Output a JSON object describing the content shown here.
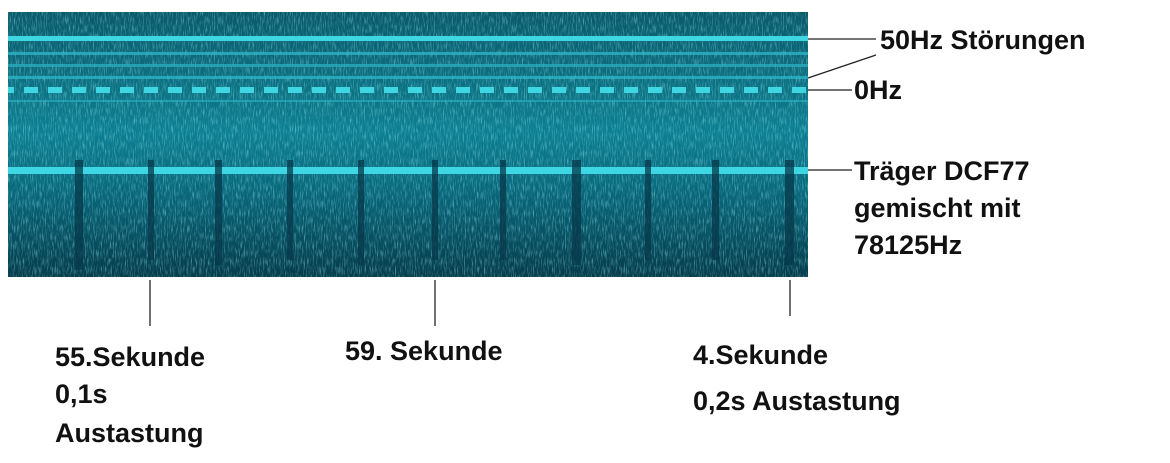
{
  "labels": {
    "interference": "50Hz Störungen",
    "zero": "0Hz",
    "carrier": [
      "Träger DCF77",
      "gemischt mit",
      "78125Hz"
    ],
    "second55": [
      "55.Sekunde",
      "0,1s",
      "Austastung"
    ],
    "second59": "59. Sekunde",
    "second4": [
      "4.Sekunde",
      "0,2s Austastung"
    ]
  }
}
